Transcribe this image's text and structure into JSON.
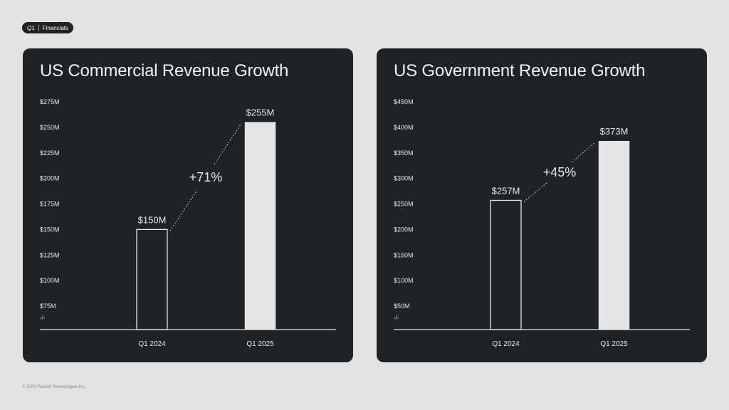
{
  "header": {
    "quarter": "Q1",
    "section": "Financials"
  },
  "footer": {
    "copyright": "© 2025 Palantir Technologies Inc."
  },
  "chart_data": [
    {
      "type": "bar",
      "title": "US Commercial Revenue Growth",
      "categories": [
        "Q1 2024",
        "Q1 2025"
      ],
      "values": [
        150,
        255
      ],
      "value_labels": [
        "$150M",
        "$255M"
      ],
      "growth_label": "+71%",
      "yticks": [
        "$75M",
        "$100M",
        "$125M",
        "$150M",
        "$175M",
        "$200M",
        "$225M",
        "$250M",
        "$275M"
      ],
      "ytick_values": [
        75,
        100,
        125,
        150,
        175,
        200,
        225,
        250,
        275
      ],
      "ylim": [
        75,
        275
      ],
      "axis_break_mark": "-/-",
      "bar_styles": [
        "outline",
        "filled"
      ],
      "colors": {
        "background": "#202226",
        "bar_fill": "#e6e6e6",
        "bar_outline": "#e6e6e6",
        "text": "#e6e6e6"
      }
    },
    {
      "type": "bar",
      "title": "US Government Revenue Growth",
      "categories": [
        "Q1 2024",
        "Q1 2025"
      ],
      "values": [
        257,
        373
      ],
      "value_labels": [
        "$257M",
        "$373M"
      ],
      "growth_label": "+45%",
      "yticks": [
        "$50M",
        "$100M",
        "$150M",
        "$200M",
        "$250M",
        "$300M",
        "$350M",
        "$400M",
        "$450M"
      ],
      "ytick_values": [
        50,
        100,
        150,
        200,
        250,
        300,
        350,
        400,
        450
      ],
      "ylim": [
        50,
        450
      ],
      "axis_break_mark": "-/-",
      "bar_styles": [
        "outline",
        "filled"
      ],
      "colors": {
        "background": "#202226",
        "bar_fill": "#e6e6e6",
        "bar_outline": "#e6e6e6",
        "text": "#e6e6e6"
      }
    }
  ]
}
